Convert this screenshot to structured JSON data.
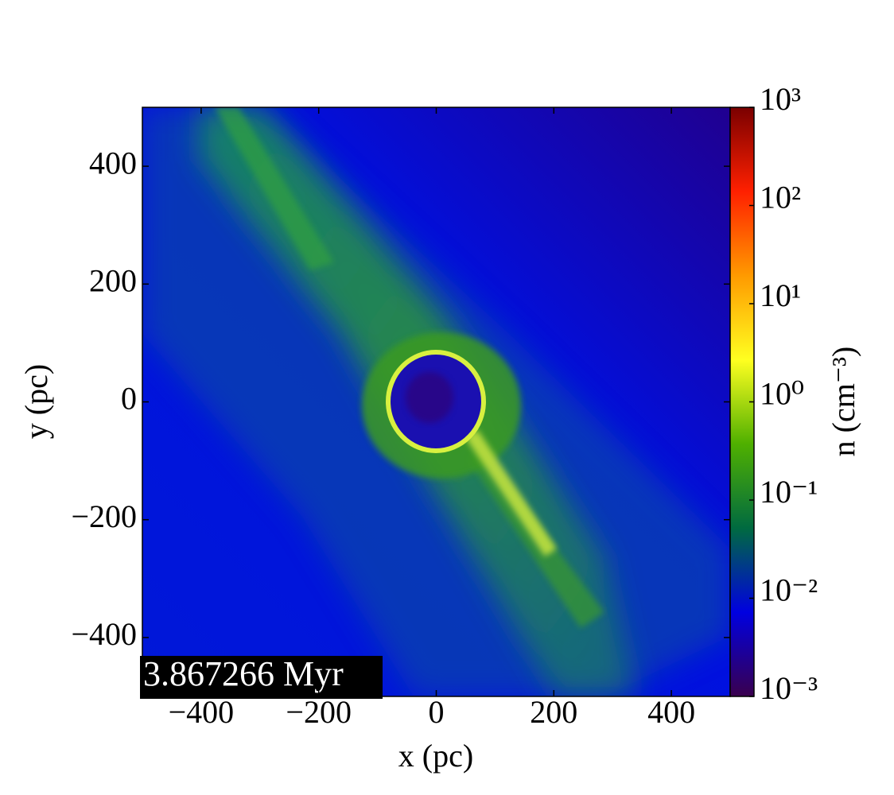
{
  "chart_data": {
    "type": "heatmap",
    "annotation": "3.867266 Myr",
    "x_label": "x  (pc)",
    "y_label": "y  (pc)",
    "xlim": [
      -500,
      500
    ],
    "ylim": [
      -500,
      500
    ],
    "xticks": [
      {
        "value": -400,
        "label": "−400"
      },
      {
        "value": -200,
        "label": "−200"
      },
      0,
      200,
      400
    ],
    "yticks": [
      {
        "value": -400,
        "label": "−400"
      },
      {
        "value": -200,
        "label": "−200"
      },
      0,
      200,
      400
    ],
    "colorbar": {
      "label": "n  (cm⁻³)",
      "log_scale": true,
      "lim": [
        0.001,
        1000
      ],
      "ticks": [
        {
          "value": 0.001,
          "label": "10⁻³"
        },
        {
          "value": 0.01,
          "label": "10⁻²"
        },
        {
          "value": 0.1,
          "label": "10⁻¹"
        },
        {
          "value": 1,
          "label": "10⁰"
        },
        {
          "value": 10,
          "label": "10¹"
        },
        {
          "value": 100,
          "label": "10²"
        },
        {
          "value": 1000,
          "label": "10³"
        }
      ],
      "colors": [
        "#3a004e",
        "#0000e0",
        "#006a40",
        "#4fb000",
        "#ffff20",
        "#ff9a00",
        "#ff2000",
        "#7a0000"
      ]
    }
  }
}
